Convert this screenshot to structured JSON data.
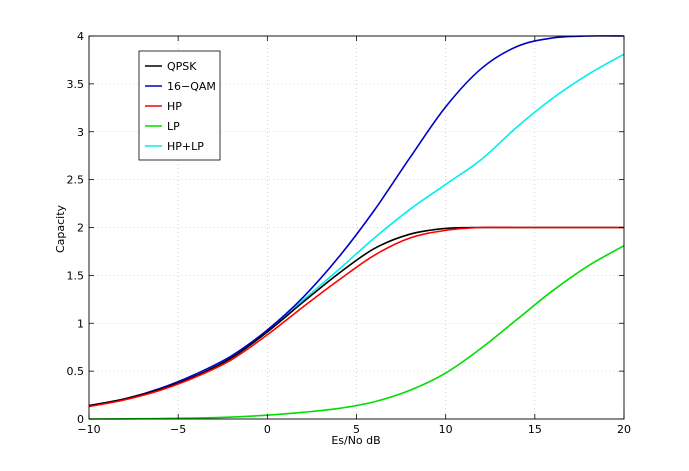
{
  "chart_data": {
    "type": "line",
    "title": "",
    "xlabel": "Es/No dB",
    "ylabel": "Capacity",
    "xlim": [
      -10,
      20
    ],
    "ylim": [
      0,
      4
    ],
    "xticks": [
      -10,
      -5,
      0,
      5,
      10,
      15,
      20
    ],
    "yticks": [
      0,
      0.5,
      1,
      1.5,
      2,
      2.5,
      3,
      3.5,
      4
    ],
    "xtick_labels": [
      "−10",
      "−5",
      "0",
      "5",
      "10",
      "15",
      "20"
    ],
    "ytick_labels": [
      "0",
      "0.5",
      "1",
      "1.5",
      "2",
      "2.5",
      "3",
      "3.5",
      "4"
    ],
    "grid": true,
    "legend_position": "top-left",
    "x": [
      -10,
      -8,
      -6,
      -4,
      -2,
      0,
      2,
      4,
      6,
      8,
      10,
      12,
      14,
      16,
      18,
      20
    ],
    "series": [
      {
        "name": "QPSK",
        "color": "#000000",
        "values": [
          0.14,
          0.21,
          0.31,
          0.45,
          0.64,
          0.91,
          1.22,
          1.52,
          1.78,
          1.93,
          1.99,
          2.0,
          2.0,
          2.0,
          2.0,
          2.0
        ]
      },
      {
        "name": "16-QAM",
        "color": "#0000cc",
        "values": [
          0.14,
          0.21,
          0.32,
          0.47,
          0.66,
          0.93,
          1.27,
          1.69,
          2.18,
          2.73,
          3.26,
          3.66,
          3.89,
          3.98,
          4.0,
          4.0
        ]
      },
      {
        "name": "HP",
        "color": "#ff0000",
        "values": [
          0.13,
          0.2,
          0.3,
          0.44,
          0.62,
          0.88,
          1.17,
          1.45,
          1.71,
          1.89,
          1.97,
          2.0,
          2.0,
          2.0,
          2.0,
          2.0
        ]
      },
      {
        "name": "LP",
        "color": "#00dd00",
        "values": [
          0.0,
          0.002,
          0.005,
          0.01,
          0.02,
          0.04,
          0.07,
          0.11,
          0.18,
          0.3,
          0.48,
          0.74,
          1.04,
          1.34,
          1.6,
          1.81
        ]
      },
      {
        "name": "HP+LP",
        "color": "#00eeee",
        "values": [
          0.14,
          0.21,
          0.31,
          0.45,
          0.64,
          0.91,
          1.24,
          1.56,
          1.89,
          2.19,
          2.45,
          2.71,
          3.05,
          3.35,
          3.6,
          3.81
        ]
      }
    ]
  }
}
